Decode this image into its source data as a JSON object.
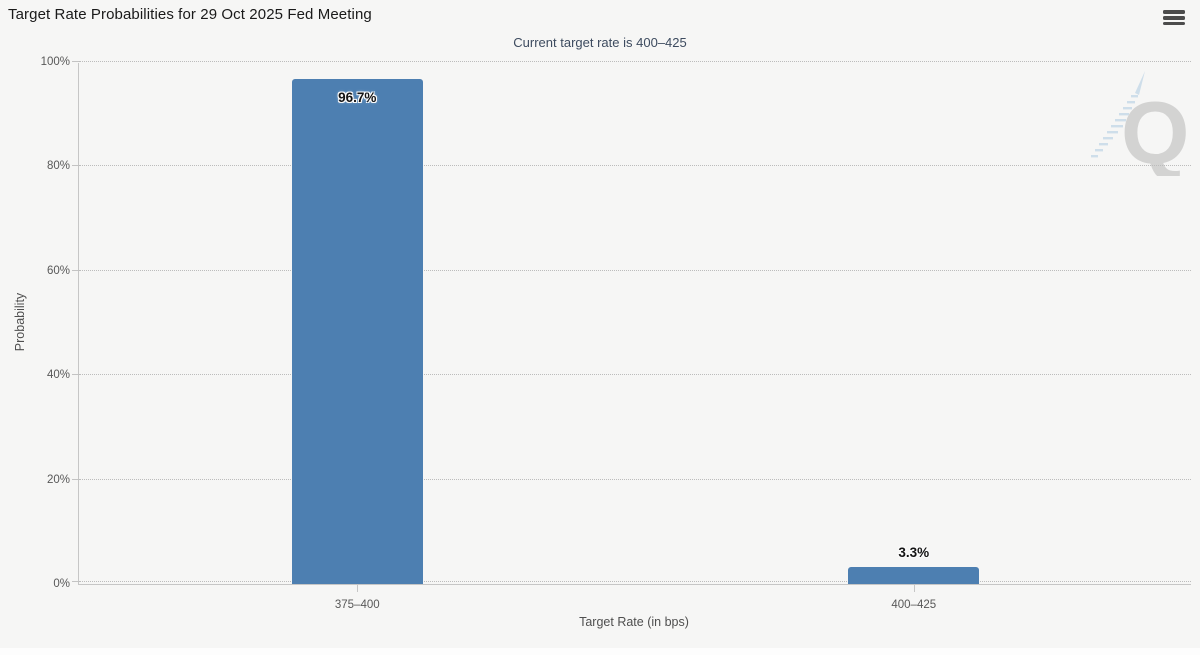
{
  "header": {
    "title": "Target Rate Probabilities for 29 Oct 2025 Fed Meeting",
    "menu_icon": "hamburger-icon"
  },
  "subtitle": "Current target rate is 400–425",
  "chart_data": {
    "type": "bar",
    "title": "Target Rate Probabilities for 29 Oct 2025 Fed Meeting",
    "subtitle": "Current target rate is 400–425",
    "categories": [
      "375–400",
      "400–425"
    ],
    "values": [
      96.7,
      3.3
    ],
    "value_labels": [
      "96.7%",
      "3.3%"
    ],
    "xlabel": "Target Rate (in bps)",
    "ylabel": "Probability",
    "ylim": [
      0,
      100
    ],
    "yticks": [
      "0%",
      "20%",
      "40%",
      "60%",
      "80%",
      "100%"
    ],
    "grid": "horizontal-dotted",
    "legend_position": "none",
    "colors": {
      "bar": "#4d7fb1",
      "axis": "#c6c6c6",
      "grid_dots": "#bcbcbc",
      "subtitle": "#3d4b5f",
      "background": "#f6f6f5"
    }
  },
  "watermark": {
    "letter": "Q",
    "icon": "quikstrike-q-logo"
  }
}
